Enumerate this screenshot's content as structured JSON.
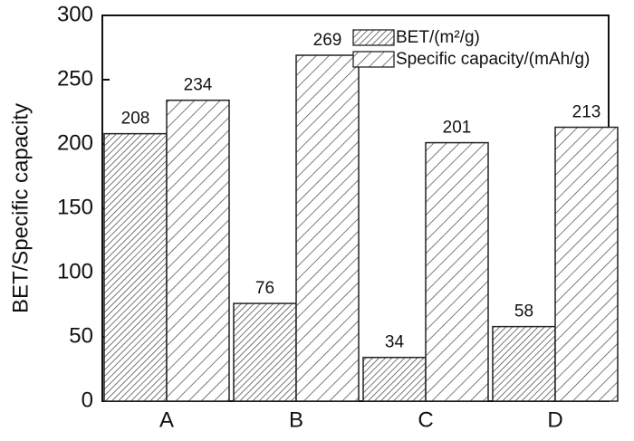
{
  "chart_data": {
    "type": "bar",
    "y_label": "BET/Specific capacity",
    "categories": [
      "A",
      "B",
      "C",
      "D"
    ],
    "series": [
      {
        "name": "BET/(m²/g)",
        "color": "#555555",
        "values": [
          208,
          76,
          34,
          58
        ]
      },
      {
        "name": "Specific capacity/(mAh/g)",
        "color": "#444444",
        "values": [
          234,
          269,
          201,
          213
        ]
      }
    ],
    "ylim": [
      0,
      300
    ],
    "yticks": [
      0,
      50,
      100,
      150,
      200,
      250,
      300
    ]
  }
}
